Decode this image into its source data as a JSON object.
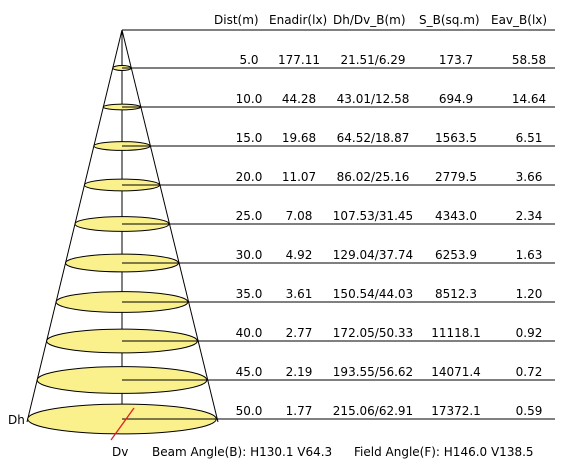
{
  "colors": {
    "ellipse_fill": "#faf08c",
    "ellipse_stroke": "#000000",
    "line": "#000000",
    "dv_marker": "#e02020"
  },
  "header": {
    "dist": "Dist(m)",
    "enadir": "Enadir(lx)",
    "dhdv": "Dh/Dv_B(m)",
    "sb": "S_B(sq.m)",
    "eav": "Eav_B(lx)"
  },
  "rows": [
    {
      "dist": "5.0",
      "enadir": "177.11",
      "dhdv": "21.51/6.29",
      "sb": "173.7",
      "eav": "58.58"
    },
    {
      "dist": "10.0",
      "enadir": "44.28",
      "dhdv": "43.01/12.58",
      "sb": "694.9",
      "eav": "14.64"
    },
    {
      "dist": "15.0",
      "enadir": "19.68",
      "dhdv": "64.52/18.87",
      "sb": "1563.5",
      "eav": "6.51"
    },
    {
      "dist": "20.0",
      "enadir": "11.07",
      "dhdv": "86.02/25.16",
      "sb": "2779.5",
      "eav": "3.66"
    },
    {
      "dist": "25.0",
      "enadir": "7.08",
      "dhdv": "107.53/31.45",
      "sb": "4343.0",
      "eav": "2.34"
    },
    {
      "dist": "30.0",
      "enadir": "4.92",
      "dhdv": "129.04/37.74",
      "sb": "6253.9",
      "eav": "1.63"
    },
    {
      "dist": "35.0",
      "enadir": "3.61",
      "dhdv": "150.54/44.03",
      "sb": "8512.3",
      "eav": "1.20"
    },
    {
      "dist": "40.0",
      "enadir": "2.77",
      "dhdv": "172.05/50.33",
      "sb": "11118.1",
      "eav": "0.92"
    },
    {
      "dist": "45.0",
      "enadir": "2.19",
      "dhdv": "193.55/56.62",
      "sb": "14071.4",
      "eav": "0.72"
    },
    {
      "dist": "50.0",
      "enadir": "1.77",
      "dhdv": "215.06/62.91",
      "sb": "17372.1",
      "eav": "0.59"
    }
  ],
  "labels": {
    "dh": "Dh",
    "dv": "Dv",
    "beam_angle": "Beam Angle(B): H130.1 V64.3",
    "field_angle": "Field Angle(F): H146.0 V138.5"
  }
}
